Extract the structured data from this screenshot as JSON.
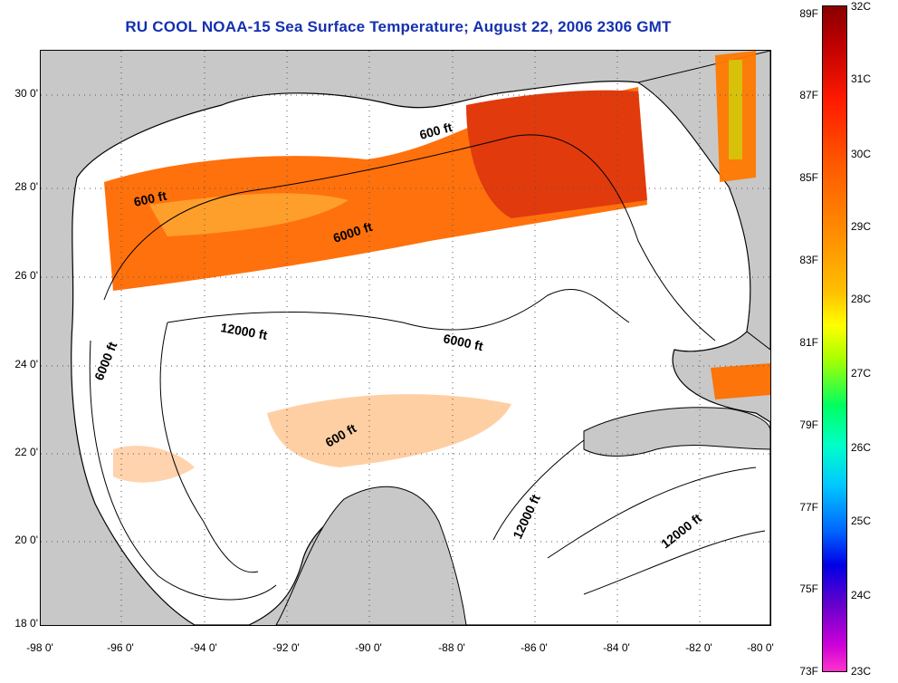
{
  "title": "RU COOL  NOAA-15  Sea Surface Temperature;  August 22, 2006 2306 GMT",
  "colors": {
    "title": "#1530b0",
    "land": "#c8c8c8",
    "water": "#ffffff"
  },
  "map": {
    "lon_labels": [
      "-98 0'",
      "-96 0'",
      "-94 0'",
      "-92 0'",
      "-90 0'",
      "-88 0'",
      "-86 0'",
      "-84 0'",
      "-82 0'",
      "-80 0'"
    ],
    "lat_labels": [
      "30 0'",
      "28 0'",
      "26 0'",
      "24 0'",
      "22 0'",
      "20 0'",
      "18 0'"
    ],
    "contour_labels": {
      "c600_west": "600 ft",
      "c600_east": "600 ft",
      "c600_south": "600 ft",
      "c6000_north": "6000 ft",
      "c6000_west": "6000 ft",
      "c6000_east": "6000 ft",
      "c12000_center": "12000 ft",
      "c12000_south": "12000 ft",
      "c12000_east": "12000 ft"
    }
  },
  "colorbar": {
    "f_labels": [
      "89F",
      "87F",
      "85F",
      "83F",
      "81F",
      "79F",
      "77F",
      "75F",
      "73F"
    ],
    "c_labels": [
      "32C",
      "31C",
      "30C",
      "29C",
      "28C",
      "27C",
      "26C",
      "25C",
      "24C",
      "23C"
    ]
  }
}
